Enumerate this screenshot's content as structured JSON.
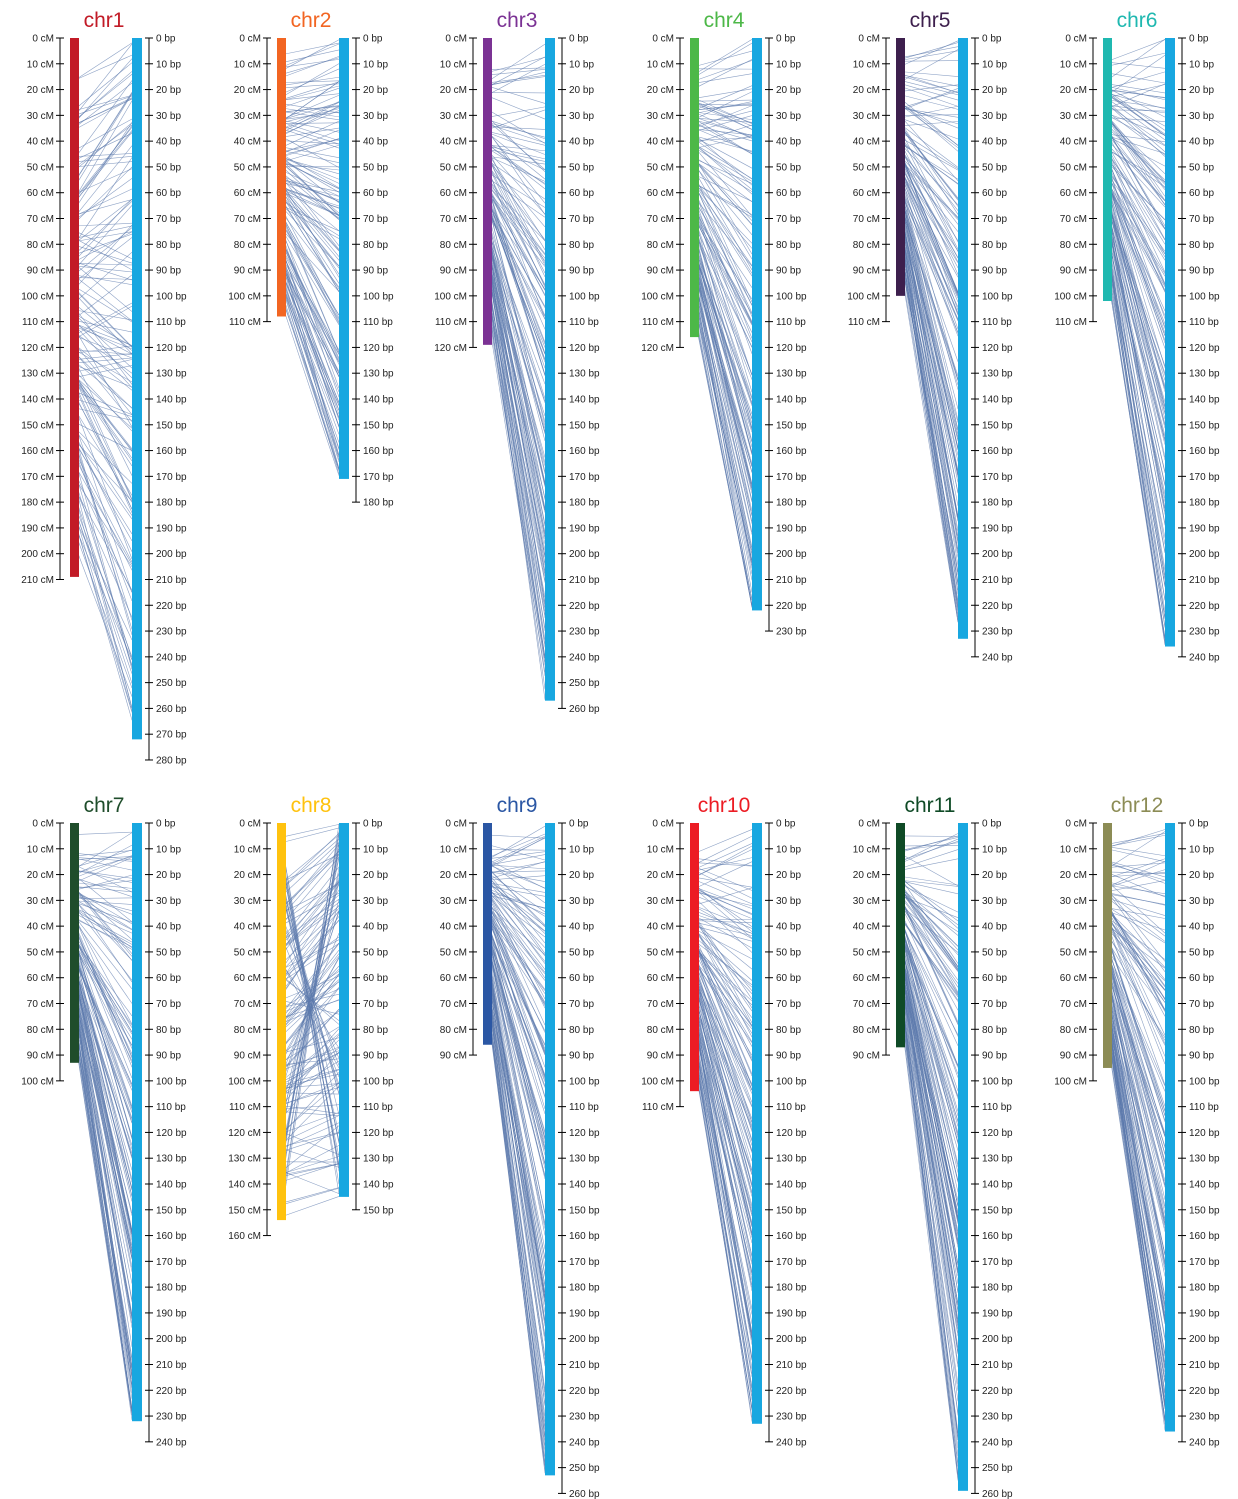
{
  "figure": {
    "cm_unit": "cM",
    "bp_unit": "bp",
    "link_color": "#5b79ad",
    "physical_bar_color": "#18a7e0"
  },
  "chromosomes": [
    {
      "name": "chr1",
      "color": "#c21b27",
      "genetic_length_cm": 209,
      "cm_axis_max": 210,
      "physical_length": 272,
      "bp_axis_max": 280
    },
    {
      "name": "chr2",
      "color": "#f26522",
      "genetic_length_cm": 108,
      "cm_axis_max": 110,
      "physical_length": 171,
      "bp_axis_max": 180
    },
    {
      "name": "chr3",
      "color": "#7b3294",
      "genetic_length_cm": 119,
      "cm_axis_max": 120,
      "physical_length": 257,
      "bp_axis_max": 260
    },
    {
      "name": "chr4",
      "color": "#4db848",
      "genetic_length_cm": 116,
      "cm_axis_max": 120,
      "physical_length": 222,
      "bp_axis_max": 230
    },
    {
      "name": "chr5",
      "color": "#3d1f4d",
      "genetic_length_cm": 100,
      "cm_axis_max": 110,
      "physical_length": 233,
      "bp_axis_max": 240
    },
    {
      "name": "chr6",
      "color": "#1fb8b0",
      "genetic_length_cm": 102,
      "cm_axis_max": 110,
      "physical_length": 236,
      "bp_axis_max": 240
    },
    {
      "name": "chr7",
      "color": "#1f4d2b",
      "genetic_length_cm": 93,
      "cm_axis_max": 100,
      "physical_length": 232,
      "bp_axis_max": 240
    },
    {
      "name": "chr8",
      "color": "#ffc20e",
      "genetic_length_cm": 154,
      "cm_axis_max": 160,
      "physical_length": 145,
      "bp_axis_max": 150
    },
    {
      "name": "chr9",
      "color": "#2b57a4",
      "genetic_length_cm": 86,
      "cm_axis_max": 90,
      "physical_length": 253,
      "bp_axis_max": 260
    },
    {
      "name": "chr10",
      "color": "#ec1c24",
      "genetic_length_cm": 104,
      "cm_axis_max": 110,
      "physical_length": 233,
      "bp_axis_max": 240
    },
    {
      "name": "chr11",
      "color": "#0f4a26",
      "genetic_length_cm": 87,
      "cm_axis_max": 90,
      "physical_length": 259,
      "bp_axis_max": 260
    },
    {
      "name": "chr12",
      "color": "#8c8c55",
      "genetic_length_cm": 95,
      "cm_axis_max": 100,
      "physical_length": 236,
      "bp_axis_max": 240
    }
  ]
}
